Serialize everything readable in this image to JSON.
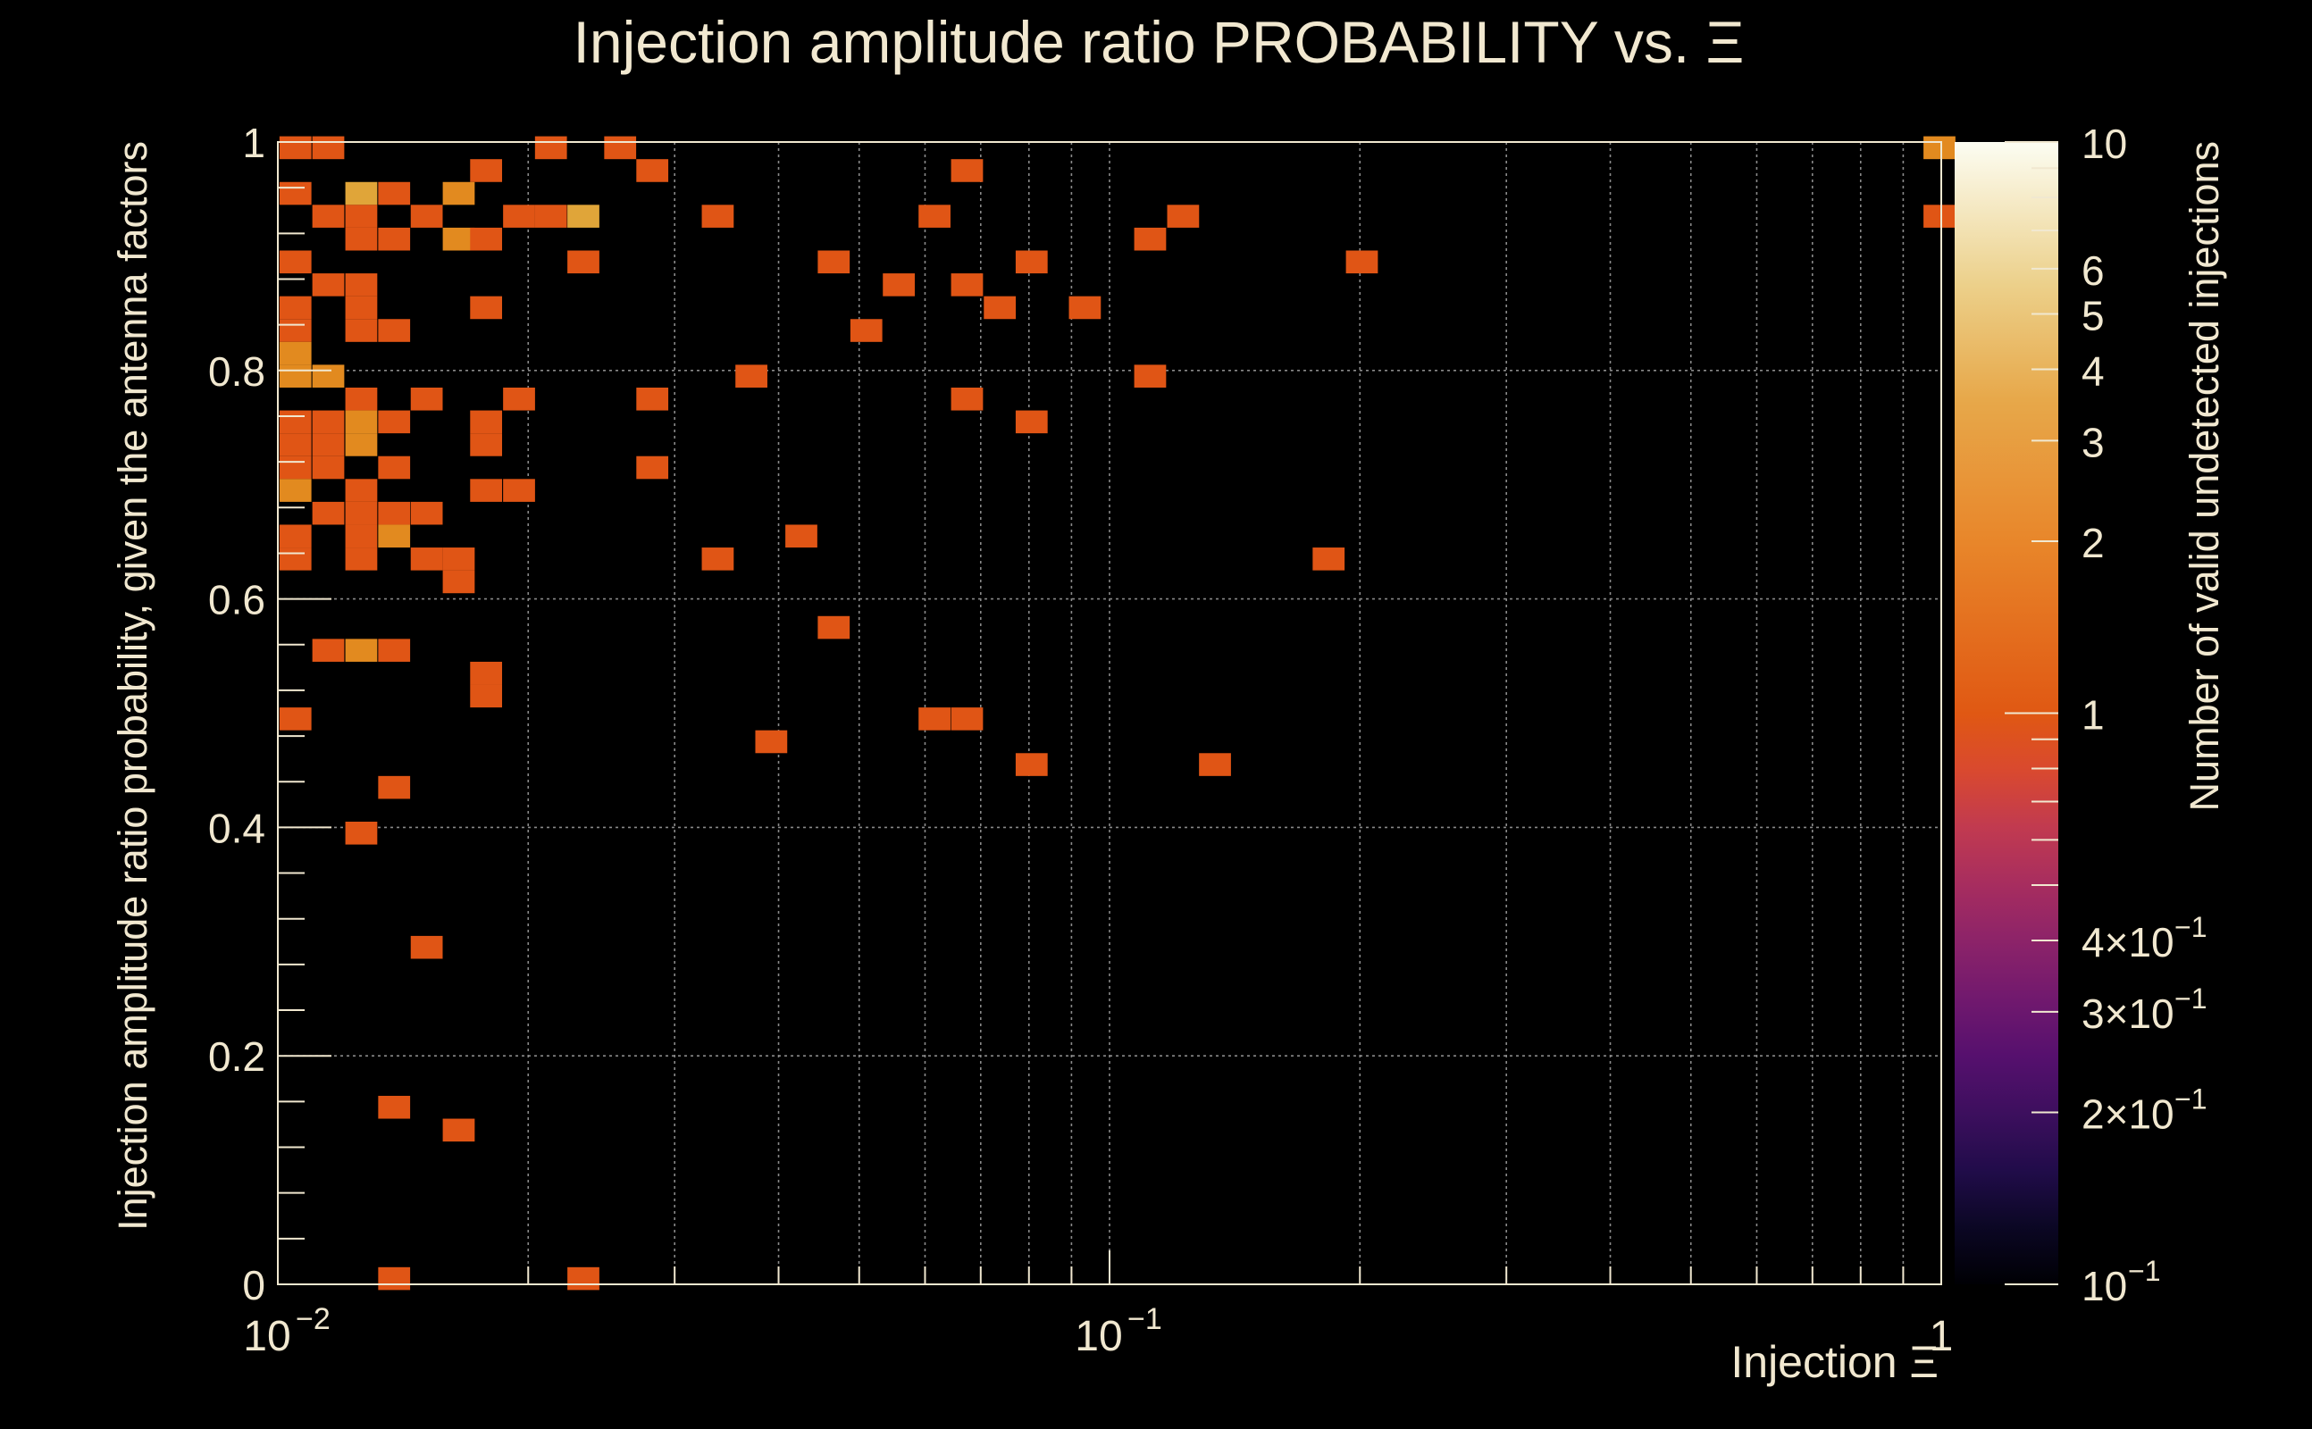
{
  "chart_data": {
    "type": "heatmap",
    "title": "Injection amplitude ratio PROBABILITY vs.  Ξ",
    "xlabel": "Injection Ξ",
    "ylabel": "Injection amplitude ratio probability, given the antenna factors",
    "zlabel": "Number of valid undetected injections",
    "x_scale": "log",
    "xlim": [
      0.01,
      1
    ],
    "ylim": [
      0,
      1
    ],
    "z_scale": "log",
    "zlim": [
      0.1,
      10
    ],
    "colormap": "inferno",
    "grid": true,
    "x_tick_labels": [
      {
        "value": 0.01,
        "base": "10",
        "exp": "−2"
      },
      {
        "value": 0.1,
        "base": "10",
        "exp": "−1"
      },
      {
        "value": 1,
        "base": "1",
        "exp": ""
      }
    ],
    "y_tick_labels": [
      {
        "value": 0,
        "label": "0"
      },
      {
        "value": 0.2,
        "label": "0.2"
      },
      {
        "value": 0.4,
        "label": "0.4"
      },
      {
        "value": 0.6,
        "label": "0.6"
      },
      {
        "value": 0.8,
        "label": "0.8"
      },
      {
        "value": 1,
        "label": "1"
      }
    ],
    "z_tick_labels": [
      {
        "value": 10,
        "mant": "10",
        "exp": ""
      },
      {
        "value": 6,
        "mant": "6",
        "exp": ""
      },
      {
        "value": 5,
        "mant": "5",
        "exp": ""
      },
      {
        "value": 4,
        "mant": "4",
        "exp": ""
      },
      {
        "value": 3,
        "mant": "3",
        "exp": ""
      },
      {
        "value": 2,
        "mant": "2",
        "exp": ""
      },
      {
        "value": 1,
        "mant": "1",
        "exp": ""
      },
      {
        "value": 0.4,
        "mant": "4×10",
        "exp": "−1"
      },
      {
        "value": 0.3,
        "mant": "3×10",
        "exp": "−1"
      },
      {
        "value": 0.2,
        "mant": "2×10",
        "exp": "−1"
      },
      {
        "value": 0.1,
        "mant": "10",
        "exp": "−1"
      }
    ],
    "cells": [
      {
        "x": 0.0105,
        "y": 0.995,
        "z": 1
      },
      {
        "x": 0.0115,
        "y": 0.995,
        "z": 1
      },
      {
        "x": 0.0213,
        "y": 0.995,
        "z": 1
      },
      {
        "x": 0.0258,
        "y": 0.995,
        "z": 1
      },
      {
        "x": 0.995,
        "y": 0.995,
        "z": 2
      },
      {
        "x": 0.0178,
        "y": 0.975,
        "z": 1
      },
      {
        "x": 0.0282,
        "y": 0.975,
        "z": 1
      },
      {
        "x": 0.0674,
        "y": 0.975,
        "z": 1
      },
      {
        "x": 0.0105,
        "y": 0.955,
        "z": 1
      },
      {
        "x": 0.0126,
        "y": 0.955,
        "z": 3
      },
      {
        "x": 0.0138,
        "y": 0.955,
        "z": 1
      },
      {
        "x": 0.0165,
        "y": 0.955,
        "z": 2
      },
      {
        "x": 0.0115,
        "y": 0.935,
        "z": 1
      },
      {
        "x": 0.0126,
        "y": 0.935,
        "z": 1
      },
      {
        "x": 0.0151,
        "y": 0.935,
        "z": 1
      },
      {
        "x": 0.0195,
        "y": 0.935,
        "z": 1
      },
      {
        "x": 0.0213,
        "y": 0.935,
        "z": 1
      },
      {
        "x": 0.0233,
        "y": 0.935,
        "z": 3
      },
      {
        "x": 0.0338,
        "y": 0.935,
        "z": 1
      },
      {
        "x": 0.0616,
        "y": 0.935,
        "z": 1
      },
      {
        "x": 0.1226,
        "y": 0.935,
        "z": 1
      },
      {
        "x": 0.995,
        "y": 0.935,
        "z": 1
      },
      {
        "x": 0.0126,
        "y": 0.915,
        "z": 1
      },
      {
        "x": 0.0138,
        "y": 0.915,
        "z": 1
      },
      {
        "x": 0.0165,
        "y": 0.915,
        "z": 2
      },
      {
        "x": 0.0178,
        "y": 0.915,
        "z": 1
      },
      {
        "x": 0.1119,
        "y": 0.915,
        "z": 1
      },
      {
        "x": 0.0105,
        "y": 0.895,
        "z": 1
      },
      {
        "x": 0.0233,
        "y": 0.895,
        "z": 1
      },
      {
        "x": 0.0466,
        "y": 0.895,
        "z": 1
      },
      {
        "x": 0.0806,
        "y": 0.895,
        "z": 1
      },
      {
        "x": 0.2011,
        "y": 0.895,
        "z": 1
      },
      {
        "x": 0.0115,
        "y": 0.875,
        "z": 1
      },
      {
        "x": 0.0126,
        "y": 0.875,
        "z": 1
      },
      {
        "x": 0.0558,
        "y": 0.875,
        "z": 1
      },
      {
        "x": 0.0674,
        "y": 0.875,
        "z": 1
      },
      {
        "x": 0.0105,
        "y": 0.855,
        "z": 1
      },
      {
        "x": 0.0126,
        "y": 0.855,
        "z": 1
      },
      {
        "x": 0.0178,
        "y": 0.855,
        "z": 1
      },
      {
        "x": 0.0738,
        "y": 0.855,
        "z": 1
      },
      {
        "x": 0.0934,
        "y": 0.855,
        "z": 1
      },
      {
        "x": 0.0105,
        "y": 0.835,
        "z": 1
      },
      {
        "x": 0.0126,
        "y": 0.835,
        "z": 1
      },
      {
        "x": 0.0138,
        "y": 0.835,
        "z": 1
      },
      {
        "x": 0.051,
        "y": 0.835,
        "z": 1
      },
      {
        "x": 0.0105,
        "y": 0.815,
        "z": 2
      },
      {
        "x": 0.0105,
        "y": 0.795,
        "z": 2
      },
      {
        "x": 0.0115,
        "y": 0.795,
        "z": 2
      },
      {
        "x": 0.0371,
        "y": 0.795,
        "z": 1
      },
      {
        "x": 0.1119,
        "y": 0.795,
        "z": 1
      },
      {
        "x": 0.0126,
        "y": 0.775,
        "z": 1
      },
      {
        "x": 0.0151,
        "y": 0.775,
        "z": 1
      },
      {
        "x": 0.0195,
        "y": 0.775,
        "z": 1
      },
      {
        "x": 0.0282,
        "y": 0.775,
        "z": 1
      },
      {
        "x": 0.0674,
        "y": 0.775,
        "z": 1
      },
      {
        "x": 0.0105,
        "y": 0.755,
        "z": 1
      },
      {
        "x": 0.0115,
        "y": 0.755,
        "z": 1
      },
      {
        "x": 0.0126,
        "y": 0.755,
        "z": 2
      },
      {
        "x": 0.0138,
        "y": 0.755,
        "z": 1
      },
      {
        "x": 0.0178,
        "y": 0.755,
        "z": 1
      },
      {
        "x": 0.0806,
        "y": 0.755,
        "z": 1
      },
      {
        "x": 0.0105,
        "y": 0.735,
        "z": 1
      },
      {
        "x": 0.0115,
        "y": 0.735,
        "z": 1
      },
      {
        "x": 0.0126,
        "y": 0.735,
        "z": 2
      },
      {
        "x": 0.0178,
        "y": 0.735,
        "z": 1
      },
      {
        "x": 0.0105,
        "y": 0.715,
        "z": 1
      },
      {
        "x": 0.0115,
        "y": 0.715,
        "z": 1
      },
      {
        "x": 0.0138,
        "y": 0.715,
        "z": 1
      },
      {
        "x": 0.0282,
        "y": 0.715,
        "z": 1
      },
      {
        "x": 0.0105,
        "y": 0.695,
        "z": 2
      },
      {
        "x": 0.0126,
        "y": 0.695,
        "z": 1
      },
      {
        "x": 0.0178,
        "y": 0.695,
        "z": 1
      },
      {
        "x": 0.0195,
        "y": 0.695,
        "z": 1
      },
      {
        "x": 0.0115,
        "y": 0.675,
        "z": 1
      },
      {
        "x": 0.0126,
        "y": 0.675,
        "z": 1
      },
      {
        "x": 0.0138,
        "y": 0.675,
        "z": 1
      },
      {
        "x": 0.0151,
        "y": 0.675,
        "z": 1
      },
      {
        "x": 0.0105,
        "y": 0.655,
        "z": 1
      },
      {
        "x": 0.0126,
        "y": 0.655,
        "z": 1
      },
      {
        "x": 0.0138,
        "y": 0.655,
        "z": 2
      },
      {
        "x": 0.0426,
        "y": 0.655,
        "z": 1
      },
      {
        "x": 0.0105,
        "y": 0.635,
        "z": 1
      },
      {
        "x": 0.0126,
        "y": 0.635,
        "z": 1
      },
      {
        "x": 0.0151,
        "y": 0.635,
        "z": 1
      },
      {
        "x": 0.0165,
        "y": 0.635,
        "z": 1
      },
      {
        "x": 0.0338,
        "y": 0.635,
        "z": 1
      },
      {
        "x": 0.1834,
        "y": 0.635,
        "z": 1
      },
      {
        "x": 0.0165,
        "y": 0.615,
        "z": 1
      },
      {
        "x": 0.0466,
        "y": 0.575,
        "z": 1
      },
      {
        "x": 0.0115,
        "y": 0.555,
        "z": 1
      },
      {
        "x": 0.0126,
        "y": 0.555,
        "z": 2
      },
      {
        "x": 0.0138,
        "y": 0.555,
        "z": 1
      },
      {
        "x": 0.0178,
        "y": 0.535,
        "z": 1
      },
      {
        "x": 0.0178,
        "y": 0.515,
        "z": 1
      },
      {
        "x": 0.0105,
        "y": 0.495,
        "z": 1
      },
      {
        "x": 0.0616,
        "y": 0.495,
        "z": 1
      },
      {
        "x": 0.0674,
        "y": 0.495,
        "z": 1
      },
      {
        "x": 0.0392,
        "y": 0.475,
        "z": 1
      },
      {
        "x": 0.0806,
        "y": 0.455,
        "z": 1
      },
      {
        "x": 0.1339,
        "y": 0.455,
        "z": 1
      },
      {
        "x": 0.0138,
        "y": 0.435,
        "z": 1
      },
      {
        "x": 0.0126,
        "y": 0.395,
        "z": 1
      },
      {
        "x": 0.0151,
        "y": 0.295,
        "z": 1
      },
      {
        "x": 0.0138,
        "y": 0.155,
        "z": 1
      },
      {
        "x": 0.0165,
        "y": 0.135,
        "z": 1
      },
      {
        "x": 0.0138,
        "y": 0.005,
        "z": 1
      },
      {
        "x": 0.0233,
        "y": 0.005,
        "z": 1
      }
    ]
  }
}
